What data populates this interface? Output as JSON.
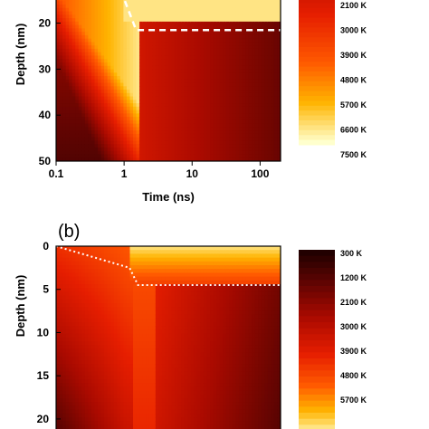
{
  "chart_data": [
    {
      "type": "heatmap",
      "panel_label": "",
      "xlabel": "Time (ns)",
      "ylabel": "Depth (nm)",
      "x_scale": "log",
      "xlim": [
        0.1,
        200
      ],
      "ylim": [
        50,
        13
      ],
      "x_ticks": [
        0.1,
        1,
        10,
        100
      ],
      "x_tick_labels": [
        "0.1",
        "1",
        "10",
        "100"
      ],
      "y_ticks": [
        20,
        30,
        40,
        50
      ],
      "y_tick_labels": [
        "20",
        "30",
        "40",
        "50"
      ],
      "boundary_line": {
        "style": "dashed",
        "color": "#ffffff",
        "points": [
          [
            0.9,
            13
          ],
          [
            1.5,
            21.5
          ],
          [
            200,
            21.5
          ]
        ]
      },
      "colorbar": {
        "labels": [
          "2100 K",
          "3000 K",
          "3900 K",
          "4800 K",
          "5700 K",
          "6600 K",
          "7500 K"
        ],
        "values": [
          2100,
          3000,
          3900,
          4800,
          5700,
          6600,
          7500
        ]
      }
    },
    {
      "type": "heatmap",
      "panel_label": "(b)",
      "xlabel": "",
      "ylabel": "Depth (nm)",
      "x_scale": "log",
      "xlim": [
        0.1,
        200
      ],
      "ylim": [
        22,
        0
      ],
      "y_ticks": [
        0,
        5,
        10,
        15,
        20
      ],
      "y_tick_labels": [
        "0",
        "5",
        "10",
        "15",
        "20"
      ],
      "boundary_line": {
        "style": "dotted",
        "color": "#ffffff",
        "points": [
          [
            0.1,
            0
          ],
          [
            1.2,
            2.5
          ],
          [
            1.6,
            4.5
          ],
          [
            200,
            4.5
          ]
        ]
      },
      "colorbar": {
        "labels": [
          "300 K",
          "1200 K",
          "2100 K",
          "3000 K",
          "3900 K",
          "4800 K",
          "5700 K"
        ],
        "values": [
          300,
          1200,
          2100,
          3000,
          3900,
          4800,
          5700
        ]
      }
    }
  ],
  "colors": {
    "cold": "#2a0000",
    "mid": "#cc1a00",
    "hot": "#ff8800",
    "hottest": "#ffffd0"
  }
}
